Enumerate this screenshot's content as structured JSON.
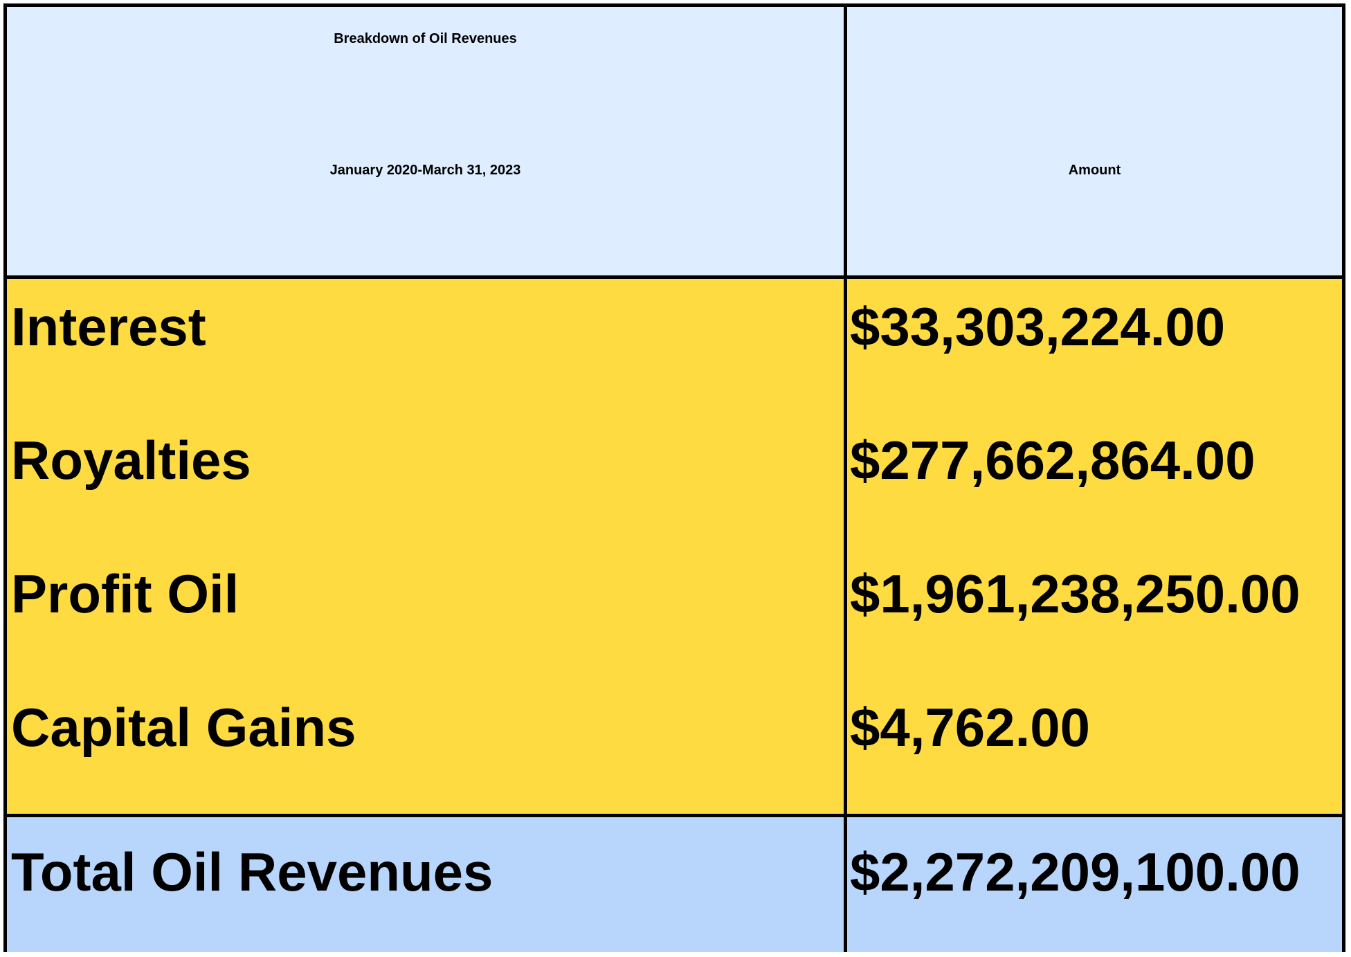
{
  "colors": {
    "header_bg": "#deedff",
    "body_bg": "#ffdb42",
    "total_bg": "#b8d5fc",
    "border": "#000000"
  },
  "header": {
    "title_line1": "Breakdown of Oil Revenues",
    "title_line2": "January 2020-March 31, 2023",
    "amount_label": "Amount"
  },
  "rows": [
    {
      "label": "Interest",
      "amount": "$33,303,224.00"
    },
    {
      "label": "Royalties",
      "amount": "$277,662,864.00"
    },
    {
      "label": "Profit Oil",
      "amount": "$1,961,238,250.00"
    },
    {
      "label": "Capital Gains",
      "amount": "$4,762.00"
    }
  ],
  "total": {
    "label": "Total Oil Revenues",
    "amount": "$2,272,209,100.00"
  },
  "chart_data": {
    "type": "table",
    "columns": [
      "Breakdown of Oil Revenues January 2020-March 31, 2023",
      "Amount"
    ],
    "categories": [
      "Interest",
      "Royalties",
      "Profit Oil",
      "Capital Gains",
      "Total Oil Revenues"
    ],
    "values": [
      33303224.0,
      277662864.0,
      1961238250.0,
      4762.0,
      2272209100.0
    ]
  }
}
